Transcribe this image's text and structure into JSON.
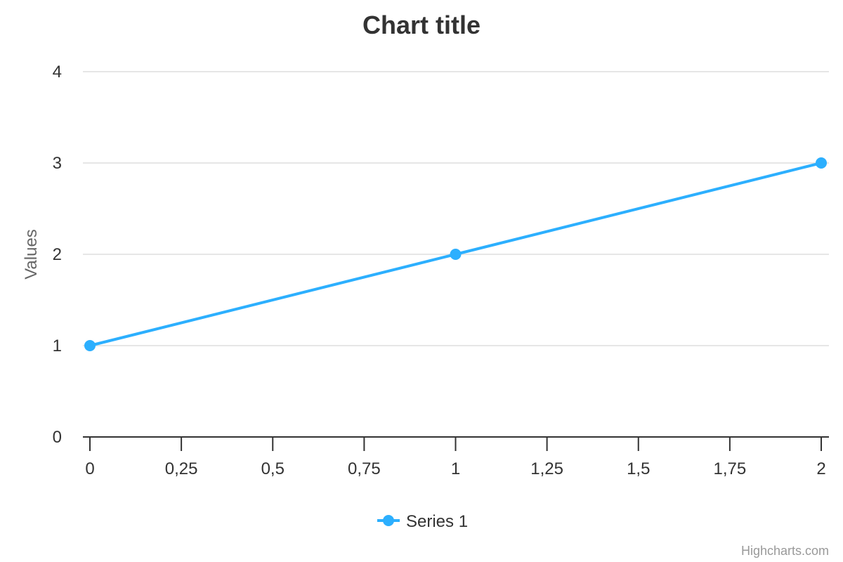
{
  "colors": {
    "series": "#2caffe",
    "grid": "#e6e6e6",
    "axis": "#333333",
    "text": "#333333",
    "muted": "#666666"
  },
  "credits": "Highcharts.com",
  "chart_data": {
    "type": "line",
    "title": "Chart title",
    "xlabel": "",
    "ylabel": "Values",
    "xlim": [
      0,
      2
    ],
    "ylim": [
      0,
      4
    ],
    "x_ticks": [
      "0",
      "0,25",
      "0,5",
      "0,75",
      "1",
      "1,25",
      "1,5",
      "1,75",
      "2"
    ],
    "y_ticks": [
      "0",
      "1",
      "2",
      "3",
      "4"
    ],
    "grid": true,
    "legend": "bottom-center",
    "series": [
      {
        "name": "Series 1",
        "color": "#2caffe",
        "x": [
          0,
          1,
          2
        ],
        "y": [
          1,
          2,
          3
        ]
      }
    ]
  }
}
